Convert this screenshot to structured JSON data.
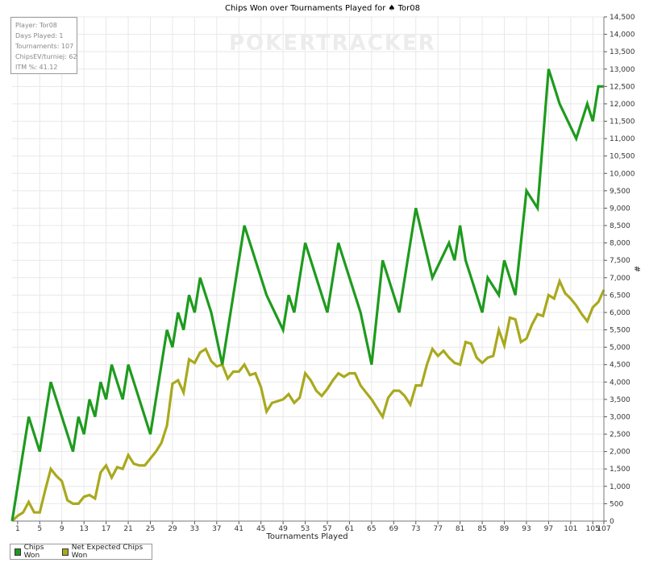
{
  "watermark": "POKERTRACKER",
  "info": {
    "player": "Player: Tor08",
    "days": "Days Played: 1",
    "tournaments": "Tournaments: 107",
    "chipsev": "ChipsEV/turniej: 62",
    "itm": "ITM %: 41.12"
  },
  "colors": {
    "chips_won": "#1e9b1e",
    "net_expected": "#a9a91e",
    "grid": "#e8e8e8"
  },
  "chart_data": {
    "type": "line",
    "title": "Chips Won over Tournaments Played for ♠ Tor08",
    "xlabel": "Tournaments Played",
    "ylabel": "#",
    "xlim": [
      0,
      107
    ],
    "ylim": [
      0,
      14500
    ],
    "x_ticks": [
      "1",
      "5",
      "9",
      "13",
      "17",
      "21",
      "25",
      "29",
      "33",
      "37",
      "41",
      "45",
      "49",
      "53",
      "57",
      "61",
      "65",
      "69",
      "73",
      "77",
      "81",
      "85",
      "89",
      "93",
      "97",
      "101",
      "105",
      "107"
    ],
    "y_ticks": [
      "0",
      "500",
      "1,000",
      "1,500",
      "2,000",
      "2,500",
      "3,000",
      "3,500",
      "4,000",
      "4,500",
      "5,000",
      "5,500",
      "6,000",
      "6,500",
      "7,000",
      "7,500",
      "8,000",
      "8,500",
      "9,000",
      "9,500",
      "10,000",
      "10,500",
      "11,000",
      "11,500",
      "12,000",
      "12,500",
      "13,000",
      "13,500",
      "14,000",
      "14,500"
    ],
    "legend_position": "bottom-left",
    "grid": true,
    "series": [
      {
        "name": "Chips Won",
        "x": [
          0,
          3,
          5,
          7,
          11,
          12,
          13,
          14,
          15,
          16,
          17,
          18,
          19,
          20,
          21,
          25,
          28,
          29,
          30,
          31,
          32,
          33,
          34,
          35,
          36,
          38,
          40,
          42,
          43,
          46,
          49,
          50,
          51,
          53,
          57,
          59,
          63,
          65,
          67,
          70,
          73,
          76,
          79,
          80,
          81,
          82,
          83,
          85,
          86,
          88,
          89,
          90,
          91,
          93,
          95,
          97,
          98,
          99,
          102,
          104,
          105,
          106,
          107
        ],
        "y": [
          0,
          3000,
          2000,
          4000,
          2000,
          3000,
          2500,
          3500,
          3000,
          4000,
          3500,
          4500,
          4000,
          3500,
          4500,
          2500,
          5500,
          5000,
          6000,
          5500,
          6500,
          6000,
          7000,
          6500,
          6000,
          4500,
          6500,
          8500,
          8000,
          6500,
          5500,
          6500,
          6000,
          8000,
          6000,
          8000,
          6000,
          4500,
          7500,
          6000,
          9000,
          7000,
          8000,
          7500,
          8500,
          7500,
          7000,
          6000,
          7000,
          6500,
          7500,
          7000,
          6500,
          9500,
          9000,
          13000,
          12500,
          12000,
          11000,
          12000,
          11500,
          12500,
          12500
        ]
      },
      {
        "name": "Net Expected Chips Won",
        "x": [
          0,
          1,
          2,
          3,
          4,
          5,
          6,
          7,
          8,
          9,
          10,
          11,
          12,
          13,
          14,
          15,
          16,
          17,
          18,
          19,
          20,
          21,
          22,
          23,
          24,
          25,
          26,
          27,
          28,
          29,
          30,
          31,
          32,
          33,
          34,
          35,
          36,
          37,
          38,
          39,
          40,
          41,
          42,
          43,
          44,
          45,
          46,
          47,
          48,
          49,
          50,
          51,
          52,
          53,
          54,
          55,
          56,
          57,
          58,
          59,
          60,
          61,
          62,
          63,
          64,
          65,
          66,
          67,
          68,
          69,
          70,
          71,
          72,
          73,
          74,
          75,
          76,
          77,
          78,
          79,
          80,
          81,
          82,
          83,
          84,
          85,
          86,
          87,
          88,
          89,
          90,
          91,
          92,
          93,
          94,
          95,
          96,
          97,
          98,
          99,
          100,
          101,
          102,
          103,
          104,
          105,
          106,
          107
        ],
        "y": [
          0,
          150,
          250,
          550,
          250,
          250,
          900,
          1500,
          1300,
          1150,
          600,
          500,
          500,
          700,
          750,
          650,
          1400,
          1600,
          1250,
          1550,
          1500,
          1900,
          1650,
          1600,
          1600,
          1800,
          2000,
          2250,
          2750,
          3950,
          4050,
          3700,
          4650,
          4550,
          4850,
          4950,
          4600,
          4450,
          4500,
          4100,
          4300,
          4300,
          4500,
          4200,
          4250,
          3850,
          3150,
          3400,
          3450,
          3500,
          3650,
          3400,
          3550,
          4250,
          4050,
          3750,
          3600,
          3800,
          4050,
          4250,
          4150,
          4250,
          4250,
          3900,
          3700,
          3500,
          3250,
          3000,
          3550,
          3750,
          3750,
          3600,
          3350,
          3900,
          3900,
          4500,
          4950,
          4750,
          4900,
          4700,
          4550,
          4500,
          5150,
          5100,
          4700,
          4550,
          4700,
          4750,
          5500,
          5050,
          5850,
          5800,
          5150,
          5250,
          5650,
          5950,
          5900,
          6500,
          6400,
          6900,
          6550,
          6400,
          6200,
          5950,
          5750,
          6150,
          6300,
          6650
        ]
      }
    ]
  }
}
